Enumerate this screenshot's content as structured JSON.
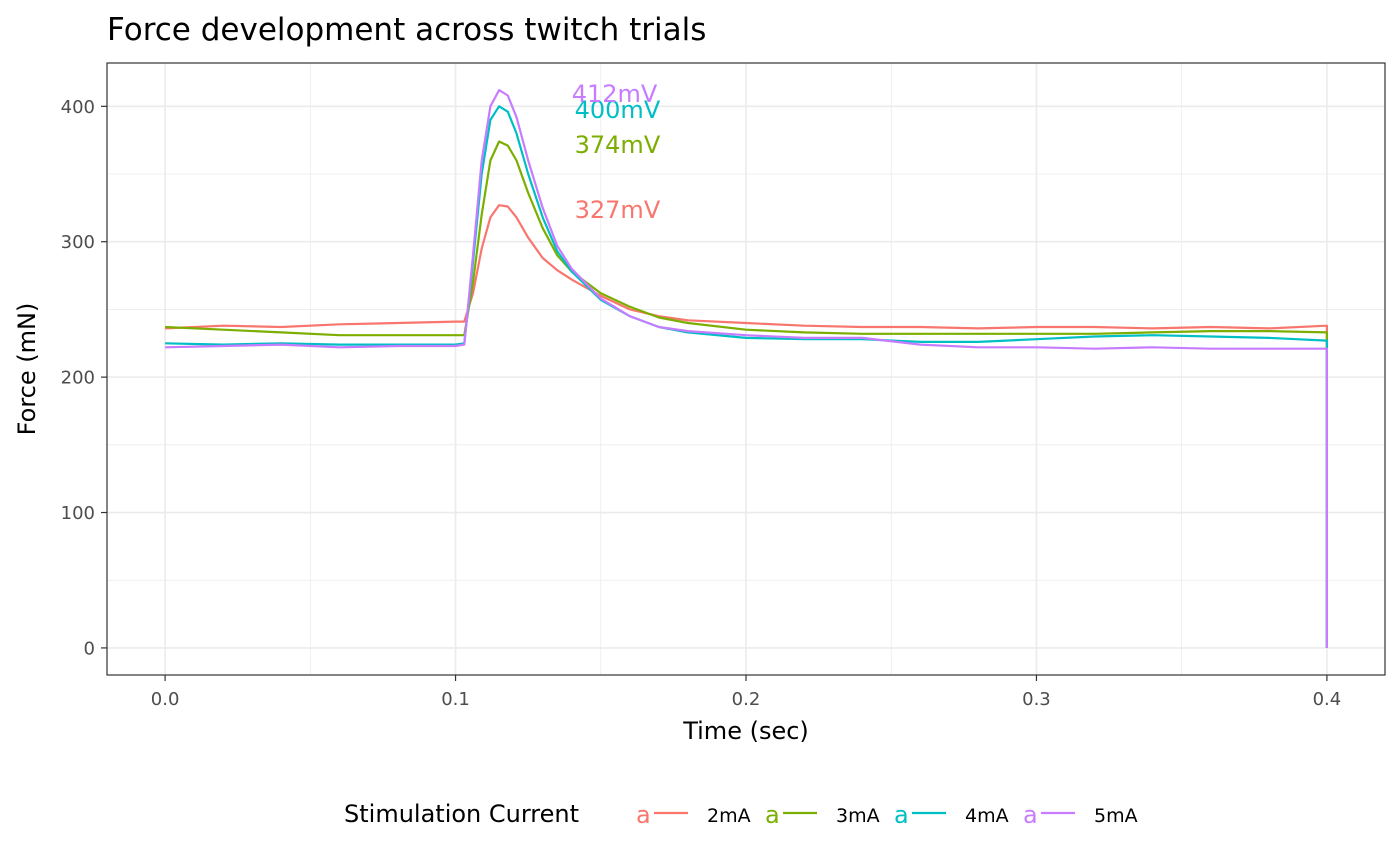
{
  "chart_data": {
    "type": "line",
    "title": "Force development across twitch trials",
    "xlabel": "Time (sec)",
    "ylabel": "Force (mN)",
    "xlim": [
      -0.02,
      0.42
    ],
    "ylim": [
      -20,
      432
    ],
    "x_ticks": [
      0.0,
      0.1,
      0.2,
      0.3,
      0.4
    ],
    "x_tick_labels": [
      "0.0",
      "0.1",
      "0.2",
      "0.3",
      "0.4"
    ],
    "y_ticks": [
      0,
      100,
      200,
      300,
      400
    ],
    "y_tick_labels": [
      "0",
      "100",
      "200",
      "300",
      "400"
    ],
    "grid": true,
    "legend": {
      "title": "Stimulation Current",
      "position": "bottom",
      "key_glyph": "a"
    },
    "series": [
      {
        "name": "2mA",
        "color": "#F8766D",
        "annotation": {
          "text": "327mV",
          "x": 0.141,
          "y": 324
        },
        "points": [
          [
            0.0,
            236
          ],
          [
            0.02,
            238
          ],
          [
            0.04,
            237
          ],
          [
            0.06,
            239
          ],
          [
            0.08,
            240
          ],
          [
            0.1,
            241
          ],
          [
            0.103,
            241
          ],
          [
            0.106,
            262
          ],
          [
            0.109,
            295
          ],
          [
            0.112,
            318
          ],
          [
            0.115,
            327
          ],
          [
            0.118,
            326
          ],
          [
            0.121,
            318
          ],
          [
            0.125,
            303
          ],
          [
            0.13,
            288
          ],
          [
            0.135,
            279
          ],
          [
            0.14,
            272
          ],
          [
            0.15,
            260
          ],
          [
            0.16,
            250
          ],
          [
            0.17,
            245
          ],
          [
            0.18,
            242
          ],
          [
            0.2,
            240
          ],
          [
            0.22,
            238
          ],
          [
            0.24,
            237
          ],
          [
            0.26,
            237
          ],
          [
            0.28,
            236
          ],
          [
            0.3,
            237
          ],
          [
            0.32,
            237
          ],
          [
            0.34,
            236
          ],
          [
            0.36,
            237
          ],
          [
            0.38,
            236
          ],
          [
            0.4,
            238
          ],
          [
            0.4,
            0
          ]
        ]
      },
      {
        "name": "3mA",
        "color": "#7CAE00",
        "annotation": {
          "text": "374mV",
          "x": 0.141,
          "y": 372
        },
        "points": [
          [
            0.0,
            237
          ],
          [
            0.02,
            235
          ],
          [
            0.04,
            233
          ],
          [
            0.06,
            231
          ],
          [
            0.08,
            231
          ],
          [
            0.1,
            231
          ],
          [
            0.103,
            231
          ],
          [
            0.106,
            270
          ],
          [
            0.109,
            320
          ],
          [
            0.112,
            360
          ],
          [
            0.115,
            374
          ],
          [
            0.118,
            371
          ],
          [
            0.121,
            360
          ],
          [
            0.125,
            336
          ],
          [
            0.13,
            310
          ],
          [
            0.135,
            290
          ],
          [
            0.14,
            278
          ],
          [
            0.15,
            262
          ],
          [
            0.16,
            252
          ],
          [
            0.17,
            244
          ],
          [
            0.18,
            240
          ],
          [
            0.2,
            235
          ],
          [
            0.22,
            233
          ],
          [
            0.24,
            232
          ],
          [
            0.26,
            232
          ],
          [
            0.28,
            232
          ],
          [
            0.3,
            232
          ],
          [
            0.32,
            232
          ],
          [
            0.34,
            233
          ],
          [
            0.36,
            234
          ],
          [
            0.38,
            234
          ],
          [
            0.4,
            233
          ],
          [
            0.4,
            0
          ]
        ]
      },
      {
        "name": "4mA",
        "color": "#00BFC4",
        "annotation": {
          "text": "400mV",
          "x": 0.141,
          "y": 398
        },
        "points": [
          [
            0.0,
            225
          ],
          [
            0.02,
            224
          ],
          [
            0.04,
            225
          ],
          [
            0.06,
            224
          ],
          [
            0.08,
            224
          ],
          [
            0.1,
            224
          ],
          [
            0.103,
            225
          ],
          [
            0.106,
            285
          ],
          [
            0.109,
            350
          ],
          [
            0.112,
            390
          ],
          [
            0.115,
            400
          ],
          [
            0.118,
            396
          ],
          [
            0.121,
            380
          ],
          [
            0.125,
            350
          ],
          [
            0.13,
            318
          ],
          [
            0.135,
            293
          ],
          [
            0.14,
            278
          ],
          [
            0.15,
            257
          ],
          [
            0.16,
            245
          ],
          [
            0.17,
            237
          ],
          [
            0.18,
            233
          ],
          [
            0.2,
            229
          ],
          [
            0.22,
            228
          ],
          [
            0.24,
            228
          ],
          [
            0.26,
            226
          ],
          [
            0.28,
            226
          ],
          [
            0.3,
            228
          ],
          [
            0.32,
            230
          ],
          [
            0.34,
            231
          ],
          [
            0.36,
            230
          ],
          [
            0.38,
            229
          ],
          [
            0.4,
            227
          ],
          [
            0.4,
            0
          ]
        ]
      },
      {
        "name": "5mA",
        "color": "#C77CFF",
        "annotation": {
          "text": "412mV",
          "x": 0.14,
          "y": 410
        },
        "points": [
          [
            0.0,
            222
          ],
          [
            0.02,
            223
          ],
          [
            0.04,
            224
          ],
          [
            0.06,
            222
          ],
          [
            0.08,
            223
          ],
          [
            0.1,
            223
          ],
          [
            0.103,
            224
          ],
          [
            0.106,
            290
          ],
          [
            0.109,
            360
          ],
          [
            0.112,
            400
          ],
          [
            0.115,
            412
          ],
          [
            0.118,
            408
          ],
          [
            0.121,
            392
          ],
          [
            0.125,
            360
          ],
          [
            0.13,
            325
          ],
          [
            0.135,
            297
          ],
          [
            0.14,
            280
          ],
          [
            0.15,
            258
          ],
          [
            0.16,
            245
          ],
          [
            0.17,
            237
          ],
          [
            0.18,
            234
          ],
          [
            0.2,
            231
          ],
          [
            0.22,
            229
          ],
          [
            0.24,
            229
          ],
          [
            0.26,
            224
          ],
          [
            0.28,
            222
          ],
          [
            0.3,
            222
          ],
          [
            0.32,
            221
          ],
          [
            0.34,
            222
          ],
          [
            0.36,
            221
          ],
          [
            0.38,
            221
          ],
          [
            0.4,
            221
          ],
          [
            0.4,
            0
          ]
        ]
      }
    ]
  }
}
